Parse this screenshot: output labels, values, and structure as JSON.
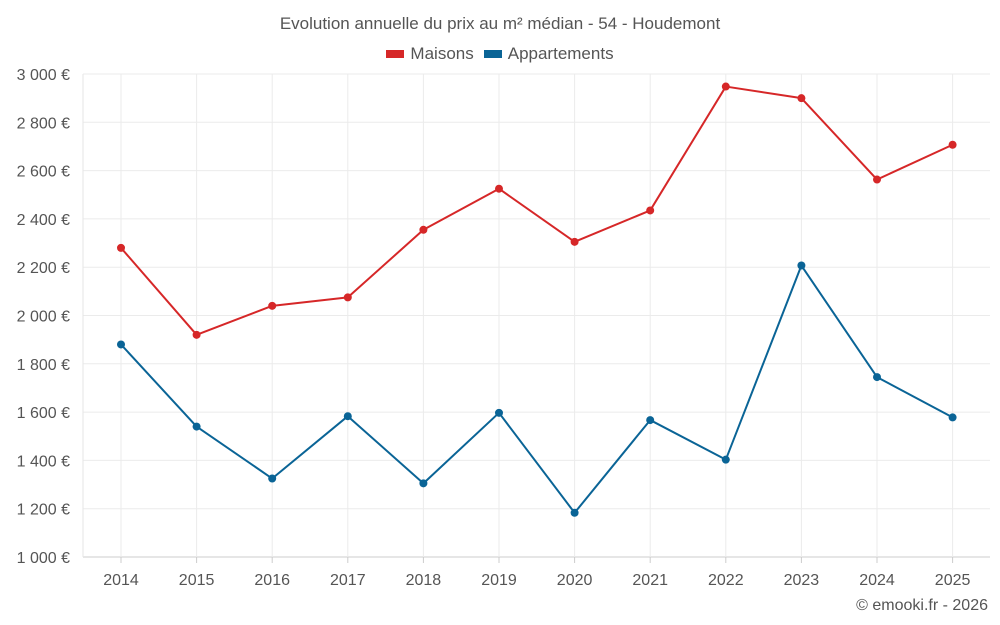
{
  "chart_data": {
    "type": "line",
    "title": "Evolution annuelle du prix au m² médian - 54 - Houdemont",
    "categories": [
      "2014",
      "2015",
      "2016",
      "2017",
      "2018",
      "2019",
      "2020",
      "2021",
      "2022",
      "2023",
      "2024",
      "2025"
    ],
    "series": [
      {
        "name": "Maisons",
        "color": "#d62728",
        "values": [
          2280,
          1920,
          2040,
          2075,
          2355,
          2525,
          2305,
          2435,
          2948,
          2900,
          2563,
          2707
        ]
      },
      {
        "name": "Appartements",
        "color": "#0a6496",
        "values": [
          1880,
          1540,
          1325,
          1583,
          1305,
          1597,
          1183,
          1567,
          1403,
          2207,
          1745,
          1578
        ]
      }
    ],
    "ylim": [
      1000,
      3000
    ],
    "yticks": [
      1000,
      1200,
      1400,
      1600,
      1800,
      2000,
      2200,
      2400,
      2600,
      2800,
      3000
    ],
    "ytick_labels": [
      "1 000 €",
      "1 200 €",
      "1 400 €",
      "1 600 €",
      "1 800 €",
      "2 000 €",
      "2 200 €",
      "2 400 €",
      "2 600 €",
      "2 800 €",
      "3 000 €"
    ],
    "xlabel": "",
    "ylabel": "",
    "grid": true,
    "legend": "top-center"
  },
  "credit": "© emooki.fr - 2026"
}
